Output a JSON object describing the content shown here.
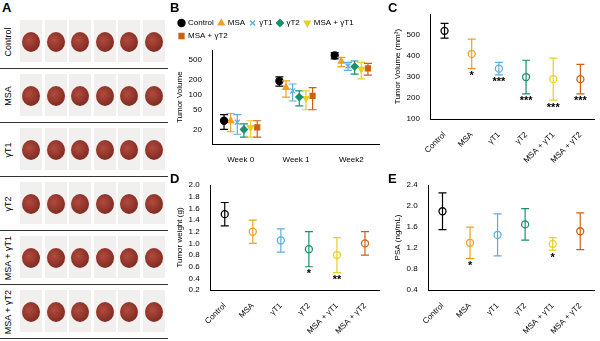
{
  "figure_A": {
    "panel": "A",
    "rows": [
      "Control",
      "MSA",
      "γT1",
      "γT2",
      "MSA + γT1",
      "MSA + γT2"
    ]
  },
  "chart_data": [
    {
      "panel": "B",
      "type": "scatter",
      "y_label": "Tumor Volume",
      "categories": [
        "Week 0",
        "Week 1",
        "Week2"
      ],
      "log": "y",
      "ylim": [
        10,
        800
      ],
      "yticks": [
        20,
        50,
        100,
        200,
        500
      ],
      "grid": false,
      "legend": "upper left",
      "series": [
        {
          "name": "Control",
          "color": "#000000",
          "marker": "circle",
          "values": [
            30,
            190,
            620
          ],
          "errors": [
            10,
            40,
            90
          ]
        },
        {
          "name": "MSA",
          "color": "#f0a020",
          "marker": "triangle",
          "values": [
            30,
            140,
            470
          ],
          "errors": [
            12,
            50,
            100
          ]
        },
        {
          "name": "γT1",
          "color": "#5aaee0",
          "marker": "cross",
          "values": [
            28,
            120,
            380
          ],
          "errors": [
            12,
            45,
            70
          ]
        },
        {
          "name": "γT2",
          "color": "#1a9070",
          "marker": "diamond",
          "values": [
            20,
            90,
            370
          ],
          "errors": [
            6,
            30,
            110
          ]
        },
        {
          "name": "MSA + γT1",
          "color": "#e8d020",
          "marker": "triangle-down",
          "values": [
            22,
            85,
            330
          ],
          "errors": [
            8,
            35,
            120
          ]
        },
        {
          "name": "MSA + γT2",
          "color": "#d06010",
          "marker": "square",
          "values": [
            22,
            95,
            340
          ],
          "errors": [
            8,
            45,
            90
          ]
        }
      ]
    },
    {
      "panel": "C",
      "type": "scatter",
      "y_label": "Tumor Volume (mm³)",
      "categories": [
        "Control",
        "MSA",
        "γT1",
        "γT2",
        "MSA + γT1",
        "MSA + γT2"
      ],
      "values": [
        520,
        410,
        340,
        300,
        290,
        290
      ],
      "errors": [
        35,
        70,
        30,
        80,
        100,
        70
      ],
      "significance": [
        null,
        "*",
        "***",
        "***",
        "***",
        "***"
      ],
      "colors": [
        "#000000",
        "#f0a020",
        "#5aaee0",
        "#1a9070",
        "#e8d020",
        "#d06010"
      ],
      "marker": "circle",
      "ylim": [
        100,
        600
      ],
      "yticks": [
        100,
        200,
        300,
        400,
        500
      ],
      "grid": false
    },
    {
      "panel": "D",
      "type": "scatter",
      "y_label": "Tumor weight (g)",
      "categories": [
        "Control",
        "MSA",
        "γT1",
        "γT2",
        "MSA + γT1",
        "MSA + γT2"
      ],
      "values": [
        1.5,
        1.2,
        1.05,
        0.9,
        0.8,
        1.0
      ],
      "errors": [
        0.2,
        0.2,
        0.2,
        0.3,
        0.3,
        0.2
      ],
      "significance": [
        null,
        null,
        null,
        "*",
        "**",
        null
      ],
      "colors": [
        "#000000",
        "#f0a020",
        "#5aaee0",
        "#1a9070",
        "#e8d020",
        "#d06010"
      ],
      "marker": "circle",
      "ylim": [
        0.2,
        2.0
      ],
      "yticks": [
        0.2,
        0.4,
        0.6,
        0.8,
        {
          "value": 1,
          "label": "1.0"
        },
        1.2,
        1.4,
        1.6,
        1.8,
        {
          "value": 2,
          "label": "2.0"
        }
      ],
      "grid": false
    },
    {
      "panel": "E",
      "type": "scatter",
      "y_label": "PSA (ng/mL)",
      "categories": [
        "Control",
        "MSA",
        "γT1",
        "γT2",
        "MSA + γT1",
        "MSA + γT2"
      ],
      "values": [
        1.9,
        1.3,
        1.45,
        1.65,
        1.28,
        1.52
      ],
      "errors": [
        0.35,
        0.3,
        0.4,
        0.3,
        0.12,
        0.35
      ],
      "significance": [
        null,
        "*",
        null,
        null,
        "*",
        null
      ],
      "colors": [
        "#000000",
        "#f0a020",
        "#5aaee0",
        "#1a9070",
        "#e8d020",
        "#d06010"
      ],
      "marker": "circle",
      "ylim": [
        0.4,
        2.4
      ],
      "yticks": [
        0.4,
        0.8,
        1.2,
        1.6,
        {
          "value": 2,
          "label": "2.0"
        },
        2.4
      ],
      "grid": false
    }
  ]
}
